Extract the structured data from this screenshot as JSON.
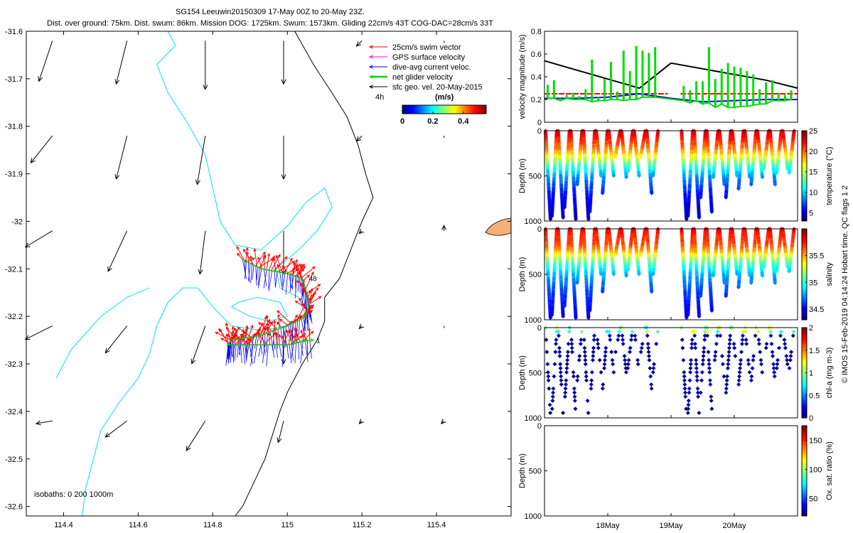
{
  "header": {
    "title": "SG154 Leeuwin20150309 17-May 00Z to 20-May 23Z.",
    "subtitle": "Dist. over ground: 75km. Dist. swum: 86km. Mission DOG: 1725km. Swum: 1573km. Gliding 22cm/s 43T COG-DAC=28cm/s 33T"
  },
  "map": {
    "xlim": [
      114.3,
      115.6
    ],
    "ylim": [
      -32.62,
      -31.6
    ],
    "xticks": [
      "114.4",
      "114.6",
      "114.8",
      "115",
      "115.2",
      "115.4"
    ],
    "yticks": [
      "-31.6",
      "-31.7",
      "-31.8",
      "-31.9",
      "-32",
      "-32.1",
      "-32.2",
      "-32.3",
      "-32.4",
      "-32.5",
      "-32.6"
    ],
    "isobaths_label": "isobaths: 0   200  1000m",
    "time_label": "4h",
    "speed_unit": "(m/s)",
    "colorbar_ticks": [
      "0",
      "0.2",
      "0.4"
    ],
    "legend": [
      {
        "label": "25cm/s swim vector",
        "color": "#ff0000"
      },
      {
        "label": "GPS surface velocity",
        "color": "#ff00ff"
      },
      {
        "label": "dive-avg current veloc.",
        "color": "#0000ff"
      },
      {
        "label": "net glider velocity",
        "color": "#00dd00"
      },
      {
        "label": "sfc geo. vel. 20-May-2015",
        "color": "#000000"
      }
    ],
    "isobath_colors": {
      "coast": "#000000",
      "mid": "#00e5ee",
      "deep": "#000000"
    },
    "sfc_geo_vel": {
      "grid_lon": [
        114.37,
        114.57,
        114.78,
        114.99,
        115.2,
        115.42
      ],
      "grid_lat": [
        -31.62,
        -31.82,
        -32.02,
        -32.22,
        -32.42
      ],
      "u_ms": [
        [
          -0.05,
          -0.04,
          0.0,
          0.0,
          -0.02,
          0.0
        ],
        [
          -0.08,
          -0.04,
          -0.03,
          0.0,
          -0.02,
          0.0
        ],
        [
          -0.1,
          -0.07,
          -0.02,
          0.0,
          -0.01,
          0.0
        ],
        [
          -0.1,
          -0.08,
          -0.05,
          0.0,
          -0.01,
          0.0
        ],
        [
          -0.06,
          -0.08,
          -0.07,
          -0.02,
          -0.01,
          -0.01
        ]
      ],
      "v_ms": [
        [
          -0.15,
          -0.16,
          -0.18,
          -0.16,
          -0.02,
          0.0
        ],
        [
          -0.1,
          -0.16,
          -0.18,
          -0.16,
          -0.02,
          0.0
        ],
        [
          -0.06,
          -0.15,
          -0.16,
          -0.16,
          -0.01,
          0.02
        ],
        [
          -0.05,
          -0.1,
          -0.14,
          -0.14,
          -0.01,
          -0.01
        ],
        [
          -0.01,
          -0.06,
          -0.11,
          -0.08,
          -0.01,
          -0.01
        ]
      ]
    },
    "track": {
      "lon": [
        114.88,
        114.93,
        115.0,
        115.04,
        115.06,
        115.05,
        115.0,
        114.93,
        114.85,
        114.84,
        114.9,
        115.0,
        115.06
      ],
      "lat": [
        -32.08,
        -32.1,
        -32.11,
        -32.12,
        -32.17,
        -32.2,
        -32.22,
        -32.24,
        -32.25,
        -32.26,
        -32.26,
        -32.26,
        -32.25
      ]
    },
    "fixes": [
      {
        "label": "48",
        "lon": 115.05,
        "lat": -32.12
      },
      {
        "label": "1",
        "lon": 115.07,
        "lat": -32.25
      }
    ]
  },
  "chart_data": [
    {
      "type": "line",
      "title": "velocity magnitude",
      "ylabel": "velocity magnitude (m/s)",
      "ylim": [
        0,
        0.8
      ],
      "yticks": [
        "0",
        "0.2",
        "0.4",
        "0.6",
        "0.8"
      ],
      "xlim_days": [
        17.0,
        21.0
      ],
      "series": [
        {
          "name": "sfc geo. vel.",
          "color": "#000000",
          "x": [
            17.0,
            17.5,
            18.0,
            18.5,
            19.0,
            19.5,
            20.0,
            20.5,
            21.0
          ],
          "y": [
            0.54,
            0.46,
            0.38,
            0.3,
            0.52,
            0.47,
            0.42,
            0.37,
            0.3
          ]
        },
        {
          "name": "25cm/s swim vector",
          "color": "#ff0000",
          "x": [
            17.0,
            18.95
          ],
          "y": [
            0.25,
            0.25
          ],
          "x2": [
            19.15,
            21.0
          ]
        },
        {
          "name": "dive-avg current veloc.",
          "color": "#0000ff",
          "x": [
            17.0,
            17.5,
            18.0,
            18.5,
            19.0,
            19.5,
            20.0,
            20.5,
            21.0
          ],
          "y": [
            0.21,
            0.21,
            0.22,
            0.25,
            0.21,
            0.18,
            0.19,
            0.2,
            0.2
          ]
        },
        {
          "name": "net glider velocity",
          "color": "#00dd00",
          "x": [
            17.05,
            17.15,
            17.25,
            17.35,
            17.45,
            17.55,
            17.65,
            17.75,
            17.85,
            17.95,
            18.05,
            18.15,
            18.25,
            18.35,
            18.45,
            18.55,
            18.65,
            18.75,
            19.2,
            19.3,
            19.4,
            19.5,
            19.6,
            19.7,
            19.8,
            19.9,
            20.0,
            20.1,
            20.2,
            20.3,
            20.4,
            20.5,
            20.6,
            20.7,
            20.8,
            20.9
          ],
          "y": [
            0.33,
            0.37,
            0.21,
            0.24,
            0.26,
            0.23,
            0.29,
            0.55,
            0.22,
            0.38,
            0.53,
            0.27,
            0.63,
            0.45,
            0.67,
            0.63,
            0.61,
            0.66,
            0.32,
            0.28,
            0.36,
            0.36,
            0.66,
            0.38,
            0.47,
            0.52,
            0.49,
            0.48,
            0.45,
            0.42,
            0.29,
            0.35,
            0.37,
            0.26,
            0.24,
            0.28
          ],
          "ymin": [
            0.21,
            0.21,
            0.19,
            0.21,
            0.2,
            0.2,
            0.2,
            0.18,
            0.19,
            0.19,
            0.2,
            0.2,
            0.19,
            0.2,
            0.2,
            0.22,
            0.22,
            0.22,
            0.19,
            0.17,
            0.19,
            0.16,
            0.17,
            0.13,
            0.16,
            0.13,
            0.13,
            0.14,
            0.14,
            0.15,
            0.16,
            0.16,
            0.19,
            0.19,
            0.19,
            0.2
          ]
        }
      ]
    },
    {
      "type": "scatter",
      "title": "temperature",
      "ylabel": "Depth (m)",
      "cbar_label": "temperature (°C)",
      "ylim": [
        1000,
        0
      ],
      "yticks": [
        "0",
        "500",
        "1000"
      ],
      "clim": [
        3,
        25
      ],
      "cbar_ticks": [
        "5",
        "10",
        "15",
        "20",
        "25"
      ],
      "dive_days": [
        17.05,
        17.15,
        17.25,
        17.35,
        17.45,
        17.55,
        17.65,
        17.75,
        17.85,
        17.95,
        18.05,
        18.15,
        18.25,
        18.35,
        18.45,
        18.55,
        18.65,
        18.75,
        19.2,
        19.3,
        19.4,
        19.5,
        19.6,
        19.7,
        19.8,
        19.9,
        20.0,
        20.1,
        20.2,
        20.3,
        20.4,
        20.5,
        20.6,
        20.7,
        20.8,
        20.9
      ],
      "dive_max_depth": [
        980,
        960,
        970,
        850,
        980,
        600,
        980,
        900,
        500,
        700,
        500,
        300,
        520,
        450,
        500,
        300,
        700,
        500,
        980,
        960,
        970,
        750,
        900,
        520,
        600,
        750,
        500,
        650,
        520,
        600,
        520,
        420,
        600,
        480,
        430,
        480
      ],
      "profile": {
        "depth": [
          0,
          50,
          100,
          150,
          200,
          250,
          300,
          400,
          500,
          700,
          1000
        ],
        "value": [
          23,
          22.5,
          21.5,
          20.5,
          19.5,
          18,
          16,
          12,
          9,
          6,
          4
        ]
      }
    },
    {
      "type": "scatter",
      "title": "salinity",
      "ylabel": "Depth (m)",
      "cbar_label": "salinity",
      "ylim": [
        1000,
        0
      ],
      "yticks": [
        "0",
        "500",
        "1000"
      ],
      "clim": [
        34.3,
        36.0
      ],
      "cbar_ticks": [
        "34.5",
        "35",
        "35.5"
      ],
      "dive_days": [
        17.05,
        17.15,
        17.25,
        17.35,
        17.45,
        17.55,
        17.65,
        17.75,
        17.85,
        17.95,
        18.05,
        18.15,
        18.25,
        18.35,
        18.45,
        18.55,
        18.65,
        18.75,
        19.2,
        19.3,
        19.4,
        19.5,
        19.6,
        19.7,
        19.8,
        19.9,
        20.0,
        20.1,
        20.2,
        20.3,
        20.4,
        20.5,
        20.6,
        20.7,
        20.8,
        20.9
      ],
      "dive_max_depth": [
        980,
        960,
        970,
        850,
        980,
        600,
        980,
        900,
        500,
        700,
        500,
        300,
        520,
        450,
        500,
        300,
        700,
        500,
        980,
        960,
        970,
        750,
        900,
        520,
        600,
        750,
        500,
        650,
        520,
        600,
        520,
        420,
        600,
        480,
        430,
        480
      ],
      "profile": {
        "depth": [
          0,
          50,
          100,
          150,
          200,
          250,
          300,
          400,
          500,
          700,
          1000
        ],
        "value": [
          35.85,
          35.75,
          35.7,
          35.68,
          35.62,
          35.5,
          35.3,
          35.0,
          34.8,
          34.6,
          34.45
        ]
      }
    },
    {
      "type": "scatter",
      "title": "chl-a",
      "ylabel": "Depth (m)",
      "cbar_label": "chl-a (mg m-3)",
      "ylim": [
        1000,
        0
      ],
      "yticks": [
        "0",
        "500",
        "1000"
      ],
      "clim": [
        0,
        2
      ],
      "cbar_ticks": [
        "0",
        "0.5",
        "1",
        "1.5",
        "2"
      ],
      "dive_days": [
        17.05,
        17.15,
        17.25,
        17.35,
        17.45,
        17.55,
        17.65,
        17.75,
        17.85,
        17.95,
        18.05,
        18.15,
        18.25,
        18.35,
        18.45,
        18.55,
        18.65,
        18.75,
        19.2,
        19.3,
        19.4,
        19.5,
        19.6,
        19.7,
        19.8,
        19.9,
        20.0,
        20.1,
        20.2,
        20.3,
        20.4,
        20.5,
        20.6,
        20.7,
        20.8,
        20.9
      ],
      "dive_max_depth": [
        980,
        960,
        970,
        850,
        980,
        600,
        980,
        900,
        500,
        700,
        500,
        300,
        520,
        450,
        500,
        300,
        700,
        500,
        980,
        960,
        970,
        750,
        900,
        520,
        600,
        750,
        500,
        650,
        520,
        600,
        520,
        420,
        600,
        480,
        430,
        480
      ]
    },
    {
      "type": "scatter",
      "title": "oxygen saturation",
      "ylabel": "Depth (m)",
      "cbar_label": "Ox. sat. ratio (%)",
      "ylim": [
        1000,
        0
      ],
      "yticks": [
        "0",
        "500",
        "1000"
      ],
      "clim": [
        20,
        175
      ],
      "cbar_ticks": [
        "50",
        "100",
        "150"
      ],
      "x_ticks": [
        "18May",
        "19May",
        "20May"
      ],
      "x_tick_days": [
        18.0,
        19.0,
        20.0
      ]
    }
  ],
  "footer": {
    "credit": "© IMOS 15-Feb-2019 04:14:24 Hobart time. QC flags 1  2"
  }
}
